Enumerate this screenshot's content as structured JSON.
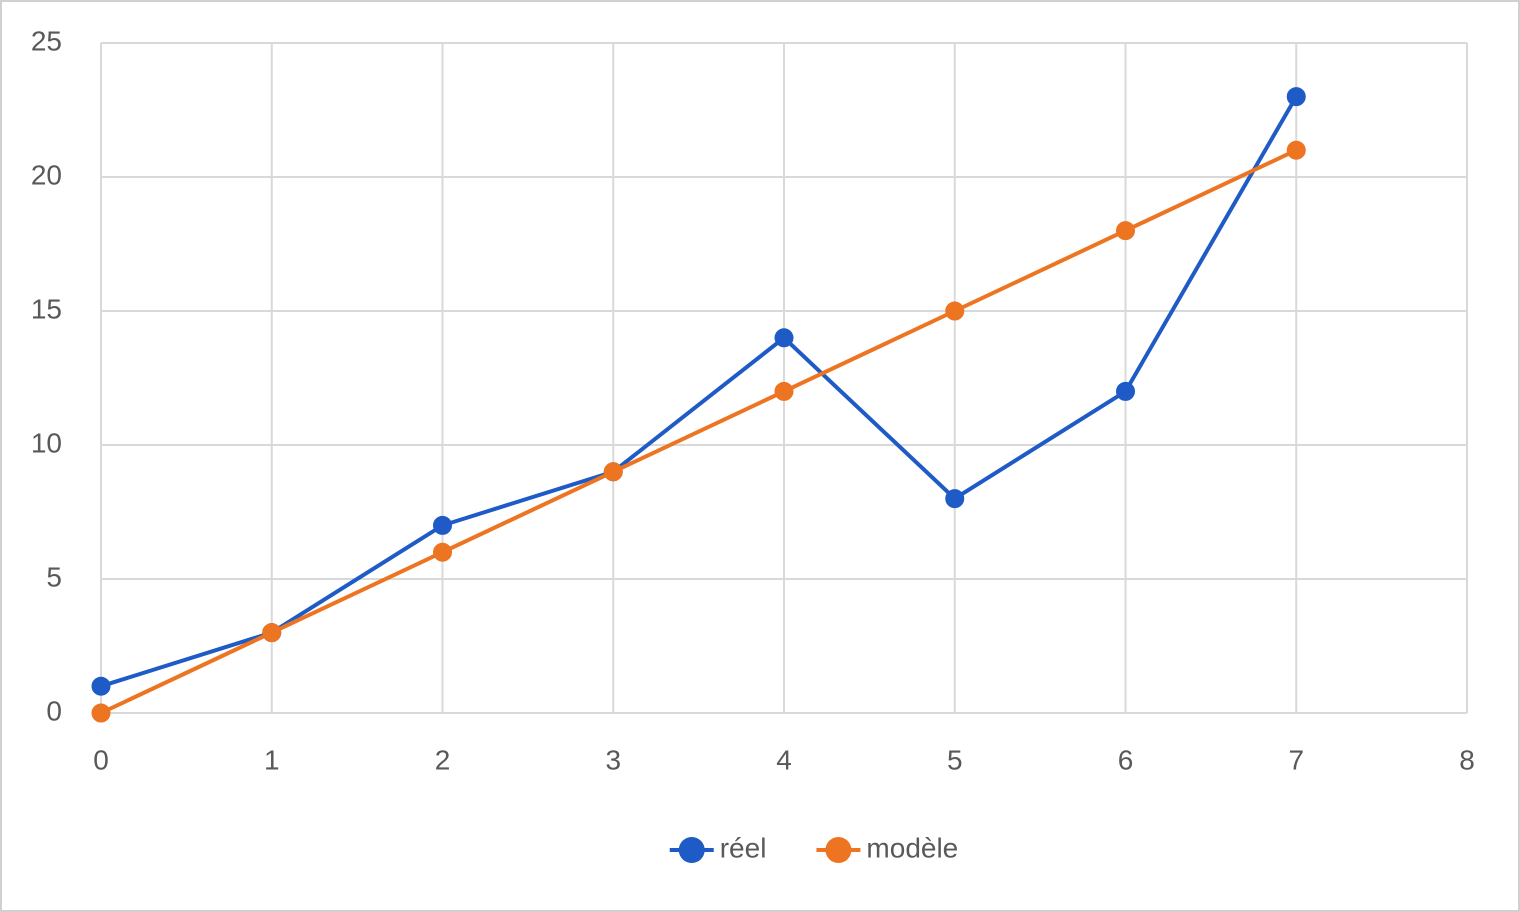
{
  "chart_data": {
    "type": "line",
    "x": [
      0,
      1,
      2,
      3,
      4,
      5,
      6,
      7
    ],
    "series": [
      {
        "name": "réel",
        "color": "#1f5bc6",
        "values": [
          1,
          3,
          7,
          9,
          14,
          8,
          12,
          23
        ]
      },
      {
        "name": "modèle",
        "color": "#ed7420",
        "values": [
          0,
          3,
          6,
          9,
          12,
          15,
          18,
          21
        ]
      }
    ],
    "xlim": [
      0,
      8
    ],
    "xticks": [
      0,
      1,
      2,
      3,
      4,
      5,
      6,
      7,
      8
    ],
    "ylim": [
      0,
      25
    ],
    "yticks": [
      0,
      5,
      10,
      15,
      20,
      25
    ],
    "grid": true,
    "legend": "bottom"
  }
}
